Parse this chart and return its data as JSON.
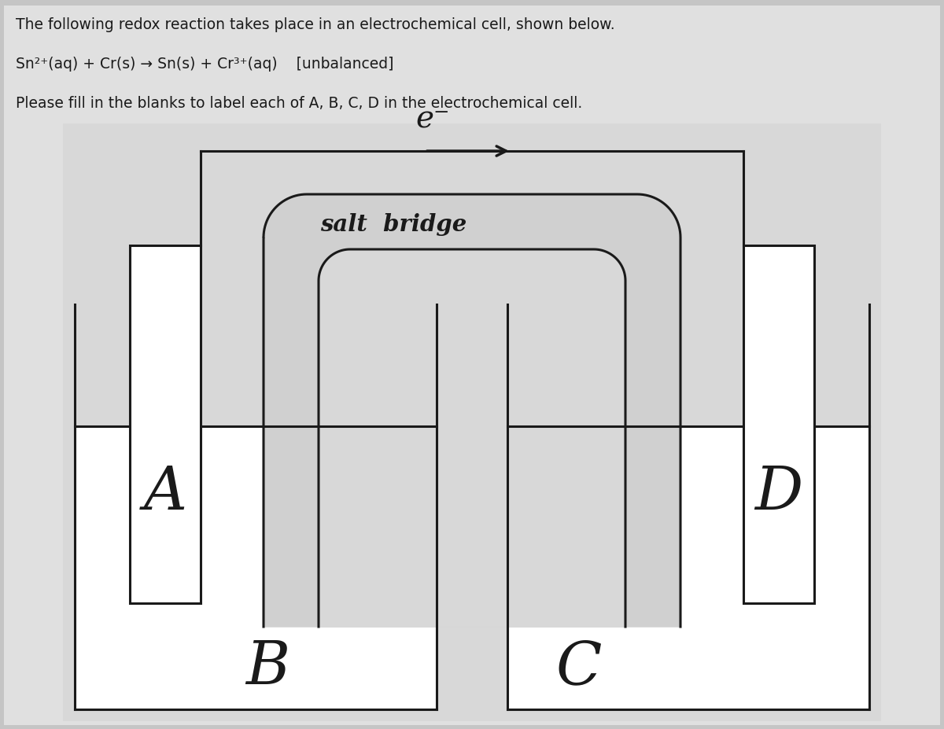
{
  "background_color": "#c5c5c5",
  "panel_color": "#e8e8e8",
  "white_color": "#ffffff",
  "line_color": "#1a1a1a",
  "text_color": "#1a1a1a",
  "title_line1": "The following redox reaction takes place in an electrochemical cell, shown below.",
  "title_line2": "Sn²⁺(aq) + Cr(s) → Sn(s) + Cr³⁺(aq)    [unbalanced]",
  "title_line3": "Please fill in the blanks to label each of A, B, C, D in the electrochemical cell.",
  "label_A": "A",
  "label_B": "B",
  "label_C": "C",
  "label_D": "D",
  "label_e": "e⁻",
  "label_salt_bridge": "salt  bridge",
  "lw": 2.2,
  "fig_w": 12.0,
  "fig_h": 9.27
}
